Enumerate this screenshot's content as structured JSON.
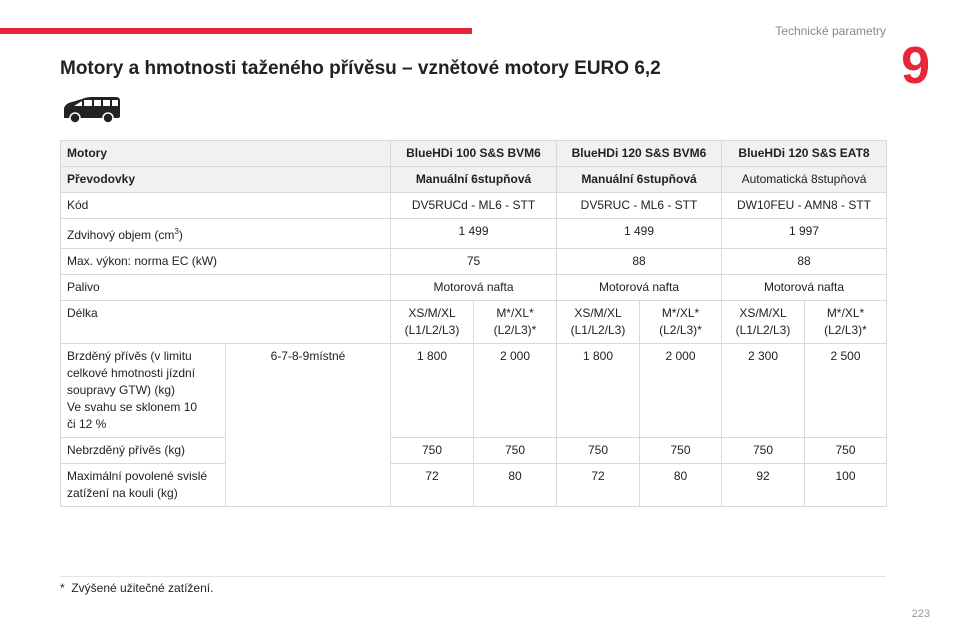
{
  "header": {
    "section": "Technické parametry",
    "chapter": "9"
  },
  "title": "Motory a hmotnosti taženého přívěsu – vznětové motory EURO 6,2",
  "icons": {
    "vehicle": "van-icon"
  },
  "table": {
    "motor_label": "Motory",
    "motors": [
      "BlueHDi 100 S&S BVM6",
      "BlueHDi 120 S&S BVM6",
      "BlueHDi 120 S&S EAT8"
    ],
    "gearbox_label": "Převodovky",
    "gearboxes": [
      "Manuální 6stupňová",
      "Manuální 6stupňová",
      "Automatická 8stupňová"
    ],
    "code_label": "Kód",
    "codes": [
      "DV5RUCd - ML6 - STT",
      "DV5RUC - ML6 - STT",
      "DW10FEU - AMN8 - STT"
    ],
    "displacement_label_prefix": "Zdvihový objem (cm",
    "displacement_label_sup": "3",
    "displacement_label_suffix": ")",
    "displacements": [
      "1 499",
      "1 499",
      "1 997"
    ],
    "power_label": "Max. výkon: norma EC (kW)",
    "powers": [
      "75",
      "88",
      "88"
    ],
    "fuel_label": "Palivo",
    "fuels": [
      "Motorová nafta",
      "Motorová nafta",
      "Motorová nafta"
    ],
    "length_label": "Délka",
    "lengths": [
      [
        "XS/M/XL",
        "(L1/L2/L3)"
      ],
      [
        "M*/XL*",
        "(L2/L3)*"
      ],
      [
        "XS/M/XL",
        "(L1/L2/L3)"
      ],
      [
        "M*/XL*",
        "(L2/L3)*"
      ],
      [
        "XS/M/XL",
        "(L1/L2/L3)"
      ],
      [
        "M*/XL*",
        "(L2/L3)*"
      ]
    ],
    "seats_note": "6-7-8-9místné",
    "braked_label_lines": [
      "Brzděný přívěs (v limitu",
      "celkové hmotnosti jízdní",
      "soupravy GTW) (kg)",
      "Ve svahu se sklonem 10",
      "či 12 %"
    ],
    "braked": [
      "1 800",
      "2 000",
      "1 800",
      "2 000",
      "2 300",
      "2 500"
    ],
    "unbraked_label": "Nebrzděný přívěs (kg)",
    "unbraked": [
      "750",
      "750",
      "750",
      "750",
      "750",
      "750"
    ],
    "vertical_label_lines": [
      "Maximální povolené svislé",
      "zatížení na kouli (kg)"
    ],
    "vertical": [
      "72",
      "80",
      "72",
      "80",
      "92",
      "100"
    ]
  },
  "footnote": {
    "mark": "*",
    "text": "Zvýšené užitečné zatížení."
  },
  "page_number": "223"
}
